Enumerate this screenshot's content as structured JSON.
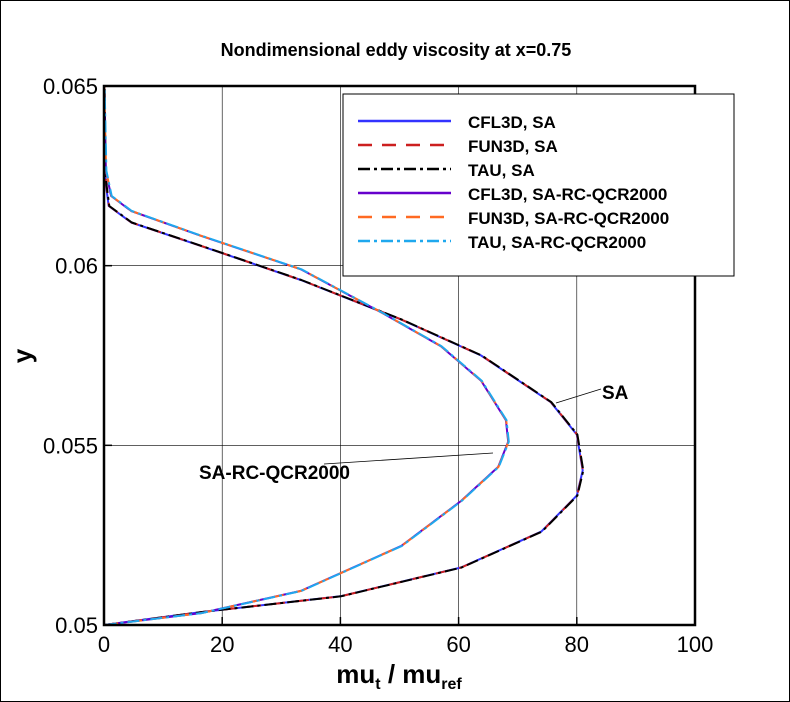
{
  "chart_data": {
    "type": "line",
    "title": "Nondimensional eddy viscosity at x=0.75",
    "xlabel": "mu_t / mu_ref",
    "xlabel_main": "mu",
    "xlabel_sub1": "t",
    "xlabel_sep": " / mu",
    "xlabel_sub2": "ref",
    "ylabel": "y",
    "xlim": [
      0,
      100
    ],
    "ylim": [
      0.05,
      0.065
    ],
    "xticks": [
      0,
      20,
      40,
      60,
      80,
      100
    ],
    "xtick_labels": [
      "0",
      "20",
      "40",
      "60",
      "80",
      "100"
    ],
    "yticks": [
      0.05,
      0.055,
      0.06,
      0.065
    ],
    "ytick_labels": [
      "0.05",
      "0.055",
      "0.06",
      "0.065"
    ],
    "grid": true,
    "legend_position": "top-right",
    "annotations": [
      {
        "text": "SA",
        "x": 80,
        "y": 0.0566
      },
      {
        "text": "SA-RC-QCR2000",
        "x": 28,
        "y": 0.0544
      }
    ],
    "series": [
      {
        "name": "CFL3D, SA",
        "color": "#3333ff",
        "dash": "",
        "model": "SA"
      },
      {
        "name": "FUN3D, SA",
        "color": "#cc1f1f",
        "dash": "14,10",
        "model": "SA"
      },
      {
        "name": "TAU, SA",
        "color": "#000000",
        "dash": "12,4,3,4",
        "model": "SA"
      },
      {
        "name": "CFL3D, SA-RC-QCR2000",
        "color": "#6600cc",
        "dash": "",
        "model": "QCR"
      },
      {
        "name": "FUN3D, SA-RC-QCR2000",
        "color": "#ff6a22",
        "dash": "14,10",
        "model": "QCR"
      },
      {
        "name": "TAU, SA-RC-QCR2000",
        "color": "#1fa8ee",
        "dash": "12,4,3,4",
        "model": "QCR"
      }
    ],
    "profiles": {
      "SA": {
        "x": [
          0,
          16.4,
          40,
          60.4,
          74,
          80,
          81,
          80,
          75.6,
          63.8,
          50.3,
          33.3,
          16.4,
          4.6,
          0.8,
          0.2,
          0
        ],
        "y": [
          0.05,
          0.05036,
          0.0508,
          0.0516,
          0.0526,
          0.0536,
          0.0543,
          0.0553,
          0.0562,
          0.0575,
          0.0585,
          0.0596,
          0.06055,
          0.0612,
          0.06166,
          0.0624,
          0.065
        ]
      },
      "QCR": {
        "x": [
          0,
          16.4,
          33.3,
          50.3,
          60.4,
          66.7,
          68.4,
          68,
          63.8,
          57,
          46.9,
          33.3,
          16.4,
          4.6,
          1.2,
          0.3,
          0
        ],
        "y": [
          0.05,
          0.05033,
          0.05095,
          0.0522,
          0.05345,
          0.0544,
          0.0551,
          0.0557,
          0.0568,
          0.05776,
          0.0587,
          0.0599,
          0.06083,
          0.06152,
          0.06194,
          0.06264,
          0.065
        ]
      }
    }
  }
}
